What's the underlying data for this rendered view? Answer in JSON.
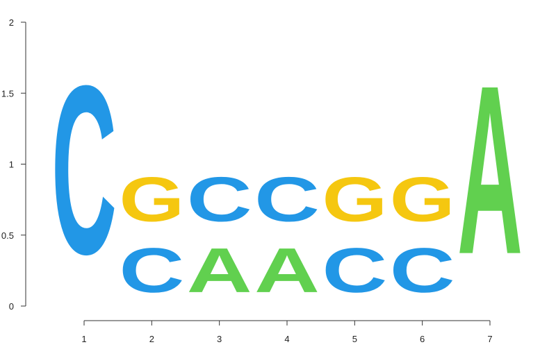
{
  "chart_data": {
    "type": "sequence-logo",
    "title": "",
    "xlabel": "",
    "ylabel": "",
    "ylim": [
      0,
      2
    ],
    "y_ticks": [
      {
        "value": 0,
        "label": "0"
      },
      {
        "value": 0.5,
        "label": "0.5"
      },
      {
        "value": 1,
        "label": "1"
      },
      {
        "value": 1.5,
        "label": "1.5"
      },
      {
        "value": 2,
        "label": "2"
      }
    ],
    "x_ticks": [
      {
        "value": 1,
        "label": "1"
      },
      {
        "value": 2,
        "label": "2"
      },
      {
        "value": 3,
        "label": "3"
      },
      {
        "value": 4,
        "label": "4"
      },
      {
        "value": 5,
        "label": "5"
      },
      {
        "value": 6,
        "label": "6"
      },
      {
        "value": 7,
        "label": "7"
      }
    ],
    "grid": false,
    "letter_colors": {
      "A": "#61d04f",
      "C": "#2297e6",
      "G": "#f5c710"
    },
    "positions": [
      {
        "position": 1,
        "stack": [
          {
            "letter": "C",
            "height": 1.9
          }
        ]
      },
      {
        "position": 2,
        "stack": [
          {
            "letter": "C",
            "height": 0.5
          },
          {
            "letter": "G",
            "height": 0.5
          }
        ]
      },
      {
        "position": 3,
        "stack": [
          {
            "letter": "A",
            "height": 0.5
          },
          {
            "letter": "C",
            "height": 0.5
          }
        ]
      },
      {
        "position": 4,
        "stack": [
          {
            "letter": "A",
            "height": 0.5
          },
          {
            "letter": "C",
            "height": 0.5
          }
        ]
      },
      {
        "position": 5,
        "stack": [
          {
            "letter": "C",
            "height": 0.5
          },
          {
            "letter": "G",
            "height": 0.5
          }
        ]
      },
      {
        "position": 6,
        "stack": [
          {
            "letter": "C",
            "height": 0.5
          },
          {
            "letter": "G",
            "height": 0.5
          }
        ]
      },
      {
        "position": 7,
        "stack": [
          {
            "letter": "A",
            "height": 1.9
          }
        ]
      }
    ]
  }
}
